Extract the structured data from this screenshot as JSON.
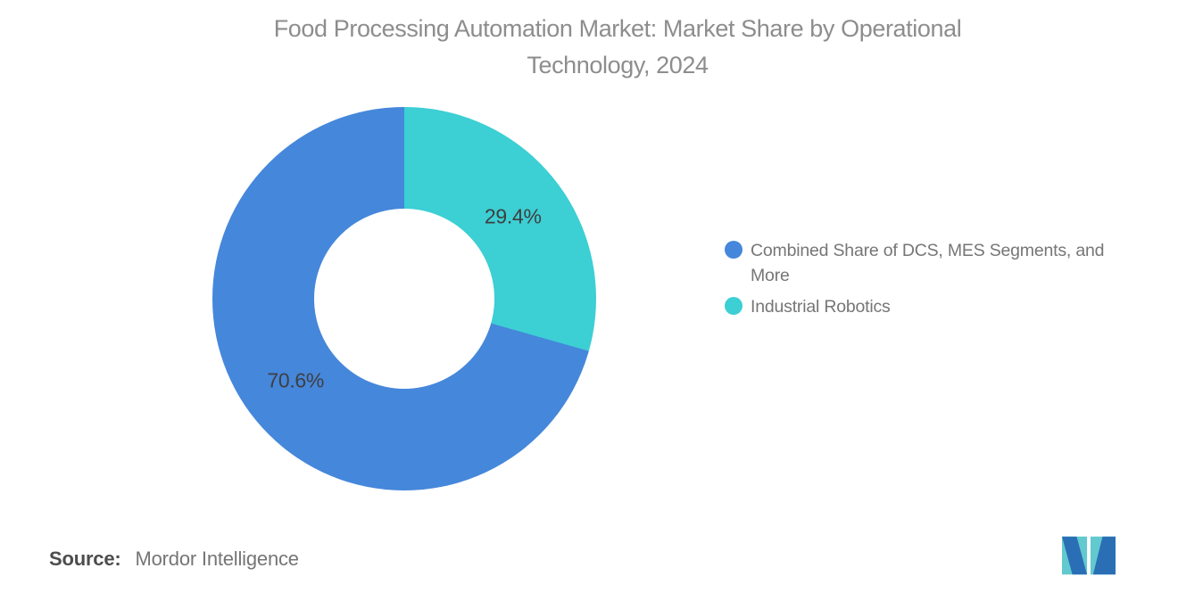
{
  "header": {
    "title_line1": "Food Processing Automation Market: Market Share by Operational",
    "title_line2": "Technology, 2024"
  },
  "chart_data": {
    "type": "pie",
    "subtype": "donut",
    "title": "Food Processing Automation Market: Market Share by Operational Technology, 2024",
    "start_angle_deg": 0,
    "direction": "clockwise",
    "hole_ratio": 0.47,
    "label_radius_ratio": 0.71,
    "legend_position": "right",
    "slices": [
      {
        "name": "Industrial Robotics",
        "value": 29.4,
        "label": "29.4%",
        "color": "#3ccfd4"
      },
      {
        "name": "Combined Share of DCS, MES Segments, and More",
        "value": 70.6,
        "label": "70.6%",
        "color": "#4587db"
      }
    ]
  },
  "legend": {
    "items": [
      {
        "label": "Combined Share of DCS, MES Segments, and More",
        "color": "#4587db"
      },
      {
        "label": "Industrial Robotics",
        "color": "#3ccfd4"
      }
    ]
  },
  "footer": {
    "source_label": "Source:",
    "source_value": "Mordor Intelligence"
  },
  "logo": {
    "icon": "mordor-intelligence-logo",
    "colors": {
      "blue": "#2a6fb5",
      "teal": "#62c9cf"
    }
  }
}
